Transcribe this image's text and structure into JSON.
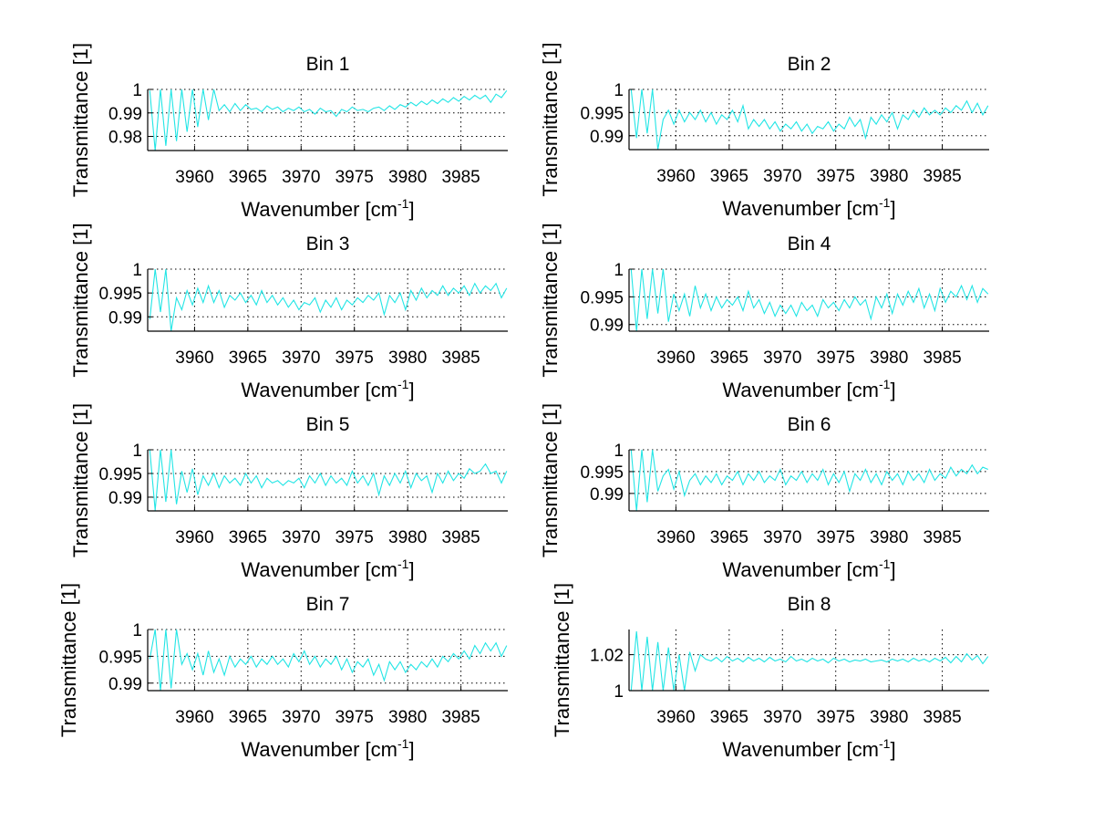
{
  "figure": {
    "line_color": "#22e5e5",
    "grid_style": "dotted"
  },
  "chart_data": [
    {
      "type": "line",
      "title": "Bin 1",
      "xlabel": "Wavenumber [cm",
      "xlabel_sup": "-1",
      "xlabel_end": "]",
      "ylabel": "Transmittance [1]",
      "xlim": [
        3955.6,
        3989.4
      ],
      "ylim": [
        0.974,
        1.0
      ],
      "xticks": [
        3960,
        3965,
        3970,
        3975,
        3980,
        3985
      ],
      "xtick_labels": [
        "3960",
        "3965",
        "3970",
        "3975",
        "3980",
        "3985"
      ],
      "yticks": [
        0.98,
        0.99,
        1.0
      ],
      "ytick_labels": [
        "0.98",
        "0.99",
        "1"
      ],
      "grid": true,
      "series": [
        {
          "name": "Bin 1",
          "x_start": 3955.8,
          "x_step": 0.5,
          "values": [
            0.9995,
            0.974,
            1.0,
            0.976,
            1.0,
            0.978,
            1.0,
            0.982,
            1.0,
            0.984,
            1.0,
            0.987,
            1.0,
            0.991,
            0.9935,
            0.9905,
            0.994,
            0.991,
            0.9935,
            0.9915,
            0.992,
            0.9905,
            0.993,
            0.9915,
            0.9925,
            0.9905,
            0.992,
            0.991,
            0.9925,
            0.9905,
            0.9915,
            0.9895,
            0.992,
            0.9905,
            0.991,
            0.9885,
            0.9915,
            0.9905,
            0.9925,
            0.991,
            0.9915,
            0.9905,
            0.992,
            0.9925,
            0.991,
            0.993,
            0.9915,
            0.9935,
            0.9925,
            0.9945,
            0.993,
            0.995,
            0.9935,
            0.9955,
            0.994,
            0.996,
            0.9945,
            0.9965,
            0.995,
            0.997,
            0.9955,
            0.9975,
            0.996,
            0.9975,
            0.9945,
            0.998,
            0.9965,
            0.9995
          ]
        }
      ]
    },
    {
      "type": "line",
      "title": "Bin 2",
      "xlabel": "Wavenumber [cm",
      "xlabel_sup": "-1",
      "xlabel_end": "]",
      "ylabel": "Transmittance [1]",
      "xlim": [
        3955.6,
        3989.4
      ],
      "ylim": [
        0.987,
        1.0
      ],
      "xticks": [
        3960,
        3965,
        3970,
        3975,
        3980,
        3985
      ],
      "xtick_labels": [
        "3960",
        "3965",
        "3970",
        "3975",
        "3980",
        "3985"
      ],
      "yticks": [
        0.99,
        0.995,
        1.0
      ],
      "ytick_labels": [
        "0.99",
        "0.995",
        "1"
      ],
      "grid": true,
      "series": [
        {
          "name": "Bin 2",
          "x_start": 3955.8,
          "x_step": 0.5,
          "values": [
            1.0,
            0.9895,
            1.0,
            0.9905,
            1.0,
            0.987,
            0.9935,
            0.9955,
            0.9925,
            0.9955,
            0.993,
            0.995,
            0.9935,
            0.9955,
            0.993,
            0.995,
            0.9925,
            0.9945,
            0.9935,
            0.9955,
            0.993,
            0.9965,
            0.9915,
            0.9935,
            0.992,
            0.9935,
            0.9915,
            0.993,
            0.991,
            0.9925,
            0.9915,
            0.993,
            0.991,
            0.9925,
            0.9905,
            0.992,
            0.9915,
            0.993,
            0.991,
            0.9925,
            0.9915,
            0.994,
            0.992,
            0.9935,
            0.9895,
            0.994,
            0.9925,
            0.9945,
            0.993,
            0.995,
            0.9915,
            0.9945,
            0.9935,
            0.9955,
            0.994,
            0.996,
            0.9945,
            0.9955,
            0.9945,
            0.996,
            0.995,
            0.9965,
            0.9955,
            0.9975,
            0.995,
            0.997,
            0.9945,
            0.9965
          ]
        }
      ]
    },
    {
      "type": "line",
      "title": "Bin 3",
      "xlabel": "Wavenumber [cm",
      "xlabel_sup": "-1",
      "xlabel_end": "]",
      "ylabel": "Transmittance [1]",
      "xlim": [
        3955.6,
        3989.4
      ],
      "ylim": [
        0.987,
        1.0
      ],
      "xticks": [
        3960,
        3965,
        3970,
        3975,
        3980,
        3985
      ],
      "xtick_labels": [
        "3960",
        "3965",
        "3970",
        "3975",
        "3980",
        "3985"
      ],
      "yticks": [
        0.99,
        0.995,
        1.0
      ],
      "ytick_labels": [
        "0.99",
        "0.995",
        "1"
      ],
      "grid": true,
      "series": [
        {
          "name": "Bin 3",
          "x_start": 3955.8,
          "x_step": 0.5,
          "values": [
            0.9895,
            1.0,
            0.991,
            1.0,
            0.987,
            0.994,
            0.9915,
            0.9955,
            0.9925,
            0.996,
            0.993,
            0.9965,
            0.993,
            0.9955,
            0.992,
            0.9945,
            0.9935,
            0.995,
            0.993,
            0.9945,
            0.9925,
            0.9955,
            0.993,
            0.9945,
            0.9925,
            0.994,
            0.992,
            0.9935,
            0.9915,
            0.993,
            0.9925,
            0.994,
            0.991,
            0.9935,
            0.992,
            0.994,
            0.9915,
            0.9935,
            0.9925,
            0.994,
            0.993,
            0.9945,
            0.9935,
            0.995,
            0.9905,
            0.9945,
            0.993,
            0.995,
            0.9915,
            0.9955,
            0.9935,
            0.996,
            0.994,
            0.9955,
            0.9945,
            0.9965,
            0.9945,
            0.996,
            0.995,
            0.9965,
            0.9945,
            0.997,
            0.995,
            0.9965,
            0.9955,
            0.997,
            0.994,
            0.996
          ]
        }
      ]
    },
    {
      "type": "line",
      "title": "Bin 4",
      "xlabel": "Wavenumber [cm",
      "xlabel_sup": "-1",
      "xlabel_end": "]",
      "ylabel": "Transmittance [1]",
      "xlim": [
        3955.6,
        3989.4
      ],
      "ylim": [
        0.9888,
        1.0
      ],
      "xticks": [
        3960,
        3965,
        3970,
        3975,
        3980,
        3985
      ],
      "xtick_labels": [
        "3960",
        "3965",
        "3970",
        "3975",
        "3980",
        "3985"
      ],
      "yticks": [
        0.99,
        0.995,
        1.0
      ],
      "ytick_labels": [
        "0.99",
        "0.995",
        "1"
      ],
      "grid": true,
      "series": [
        {
          "name": "Bin 4",
          "x_start": 3955.8,
          "x_step": 0.5,
          "values": [
            1.0,
            0.9888,
            1.0,
            0.991,
            1.0,
            0.992,
            1.0,
            0.9905,
            0.9955,
            0.9925,
            0.9955,
            0.9915,
            0.997,
            0.993,
            0.9955,
            0.9925,
            0.995,
            0.993,
            0.9945,
            0.9935,
            0.995,
            0.9925,
            0.996,
            0.993,
            0.9945,
            0.992,
            0.994,
            0.9915,
            0.9935,
            0.992,
            0.9935,
            0.9915,
            0.994,
            0.9925,
            0.9935,
            0.9915,
            0.9945,
            0.993,
            0.994,
            0.9925,
            0.9945,
            0.993,
            0.995,
            0.9935,
            0.9945,
            0.991,
            0.995,
            0.993,
            0.9955,
            0.992,
            0.9955,
            0.9935,
            0.996,
            0.994,
            0.9965,
            0.993,
            0.9955,
            0.9925,
            0.9965,
            0.994,
            0.996,
            0.995,
            0.997,
            0.9945,
            0.997,
            0.994,
            0.9965,
            0.9955
          ]
        }
      ]
    },
    {
      "type": "line",
      "title": "Bin 5",
      "xlabel": "Wavenumber [cm",
      "xlabel_sup": "-1",
      "xlabel_end": "]",
      "ylabel": "Transmittance [1]",
      "xlim": [
        3955.6,
        3989.4
      ],
      "ylim": [
        0.9871,
        1.0
      ],
      "xticks": [
        3960,
        3965,
        3970,
        3975,
        3980,
        3985
      ],
      "xtick_labels": [
        "3960",
        "3965",
        "3970",
        "3975",
        "3980",
        "3985"
      ],
      "yticks": [
        0.99,
        0.995,
        1.0
      ],
      "ytick_labels": [
        "0.99",
        "0.995",
        "1"
      ],
      "grid": true,
      "series": [
        {
          "name": "Bin 5",
          "x_start": 3955.8,
          "x_step": 0.5,
          "values": [
            1.0,
            0.9872,
            1.0,
            0.989,
            1.0,
            0.9885,
            0.9955,
            0.991,
            0.996,
            0.9905,
            0.9945,
            0.9925,
            0.995,
            0.992,
            0.9945,
            0.993,
            0.994,
            0.9925,
            0.995,
            0.993,
            0.9945,
            0.992,
            0.994,
            0.993,
            0.9935,
            0.9925,
            0.9935,
            0.993,
            0.994,
            0.992,
            0.9945,
            0.993,
            0.995,
            0.9925,
            0.9945,
            0.993,
            0.994,
            0.9925,
            0.9955,
            0.993,
            0.9945,
            0.9925,
            0.995,
            0.9905,
            0.9945,
            0.9925,
            0.995,
            0.993,
            0.9955,
            0.992,
            0.995,
            0.9935,
            0.9945,
            0.991,
            0.995,
            0.993,
            0.9955,
            0.9935,
            0.995,
            0.994,
            0.996,
            0.995,
            0.9955,
            0.997,
            0.995,
            0.9955,
            0.993,
            0.9955
          ]
        }
      ]
    },
    {
      "type": "line",
      "title": "Bin 6",
      "xlabel": "Wavenumber [cm",
      "xlabel_sup": "-1",
      "xlabel_end": "]",
      "ylabel": "Transmittance [1]",
      "xlim": [
        3955.6,
        3989.4
      ],
      "ylim": [
        0.986,
        1.0
      ],
      "xticks": [
        3960,
        3965,
        3970,
        3975,
        3980,
        3985
      ],
      "xtick_labels": [
        "3960",
        "3965",
        "3970",
        "3975",
        "3980",
        "3985"
      ],
      "yticks": [
        0.99,
        0.995,
        1.0
      ],
      "ytick_labels": [
        "0.99",
        "0.995",
        "1"
      ],
      "grid": true,
      "series": [
        {
          "name": "Bin 6",
          "x_start": 3955.8,
          "x_step": 0.5,
          "values": [
            1.0,
            0.986,
            1.0,
            0.988,
            1.0,
            0.9905,
            0.994,
            0.9955,
            0.991,
            0.995,
            0.9895,
            0.993,
            0.9945,
            0.992,
            0.994,
            0.9925,
            0.9945,
            0.992,
            0.994,
            0.993,
            0.995,
            0.992,
            0.9945,
            0.993,
            0.995,
            0.9925,
            0.994,
            0.993,
            0.9955,
            0.992,
            0.994,
            0.993,
            0.995,
            0.9925,
            0.9945,
            0.993,
            0.9955,
            0.992,
            0.9945,
            0.9925,
            0.995,
            0.9905,
            0.9945,
            0.993,
            0.9955,
            0.9925,
            0.9945,
            0.992,
            0.995,
            0.993,
            0.9945,
            0.992,
            0.995,
            0.993,
            0.9945,
            0.9925,
            0.9955,
            0.993,
            0.9945,
            0.9935,
            0.996,
            0.994,
            0.9955,
            0.9945,
            0.9965,
            0.9945,
            0.996,
            0.9955
          ]
        }
      ]
    },
    {
      "type": "line",
      "title": "Bin 7",
      "xlabel": "Wavenumber [cm",
      "xlabel_sup": "-1",
      "xlabel_end": "]",
      "ylabel": "Transmittance [1]",
      "xlim": [
        3955.6,
        3989.4
      ],
      "ylim": [
        0.9886,
        1.0
      ],
      "xticks": [
        3960,
        3965,
        3970,
        3975,
        3980,
        3985
      ],
      "xtick_labels": [
        "3960",
        "3965",
        "3970",
        "3975",
        "3980",
        "3985"
      ],
      "yticks": [
        0.99,
        0.995,
        1.0
      ],
      "ytick_labels": [
        "0.99",
        "0.995",
        "1"
      ],
      "grid": true,
      "series": [
        {
          "name": "Bin 7",
          "x_start": 3955.8,
          "x_step": 0.5,
          "values": [
            0.9945,
            1.0,
            0.9886,
            1.0,
            0.989,
            1.0,
            0.9935,
            0.9955,
            0.9925,
            0.9955,
            0.9915,
            0.996,
            0.992,
            0.9945,
            0.9915,
            0.995,
            0.993,
            0.9945,
            0.9935,
            0.995,
            0.993,
            0.9945,
            0.9935,
            0.995,
            0.9935,
            0.9945,
            0.993,
            0.9955,
            0.994,
            0.996,
            0.9935,
            0.995,
            0.993,
            0.9945,
            0.9935,
            0.995,
            0.9925,
            0.9945,
            0.992,
            0.994,
            0.993,
            0.9945,
            0.9915,
            0.9935,
            0.9905,
            0.994,
            0.9925,
            0.994,
            0.992,
            0.9935,
            0.9925,
            0.994,
            0.993,
            0.9945,
            0.993,
            0.995,
            0.994,
            0.9955,
            0.9945,
            0.996,
            0.9945,
            0.997,
            0.9955,
            0.9975,
            0.996,
            0.9975,
            0.995,
            0.997
          ]
        }
      ]
    },
    {
      "type": "line",
      "title": "Bin 8",
      "xlabel": "Wavenumber [cm",
      "xlabel_sup": "-1",
      "xlabel_end": "]",
      "ylabel": "Transmittance [1]",
      "xlim": [
        3955.6,
        3989.4
      ],
      "ylim": [
        1.0,
        1.034
      ],
      "xticks": [
        3960,
        3965,
        3970,
        3975,
        3980,
        3985
      ],
      "xtick_labels": [
        "3960",
        "3965",
        "3970",
        "3975",
        "3980",
        "3985"
      ],
      "yticks": [
        1.0,
        1.02
      ],
      "ytick_labels": [
        "1",
        "1.02"
      ],
      "grid": true,
      "series": [
        {
          "name": "Bin 8",
          "x_start": 3955.8,
          "x_step": 0.5,
          "values": [
            1.0,
            1.033,
            1.0,
            1.03,
            1.0,
            1.027,
            1.0,
            1.024,
            1.0,
            1.02,
            1.0,
            1.0215,
            1.011,
            1.02,
            1.0175,
            1.0165,
            1.0185,
            1.016,
            1.019,
            1.0165,
            1.018,
            1.016,
            1.0185,
            1.0165,
            1.018,
            1.016,
            1.0185,
            1.0165,
            1.0175,
            1.016,
            1.019,
            1.0165,
            1.0175,
            1.016,
            1.018,
            1.0165,
            1.0175,
            1.0155,
            1.018,
            1.0165,
            1.0175,
            1.016,
            1.017,
            1.0165,
            1.0175,
            1.016,
            1.0165,
            1.017,
            1.016,
            1.0175,
            1.0165,
            1.0175,
            1.016,
            1.018,
            1.0165,
            1.0175,
            1.016,
            1.018,
            1.0165,
            1.0185,
            1.0155,
            1.019,
            1.016,
            1.0205,
            1.017,
            1.0195,
            1.015,
            1.019
          ]
        }
      ]
    }
  ]
}
